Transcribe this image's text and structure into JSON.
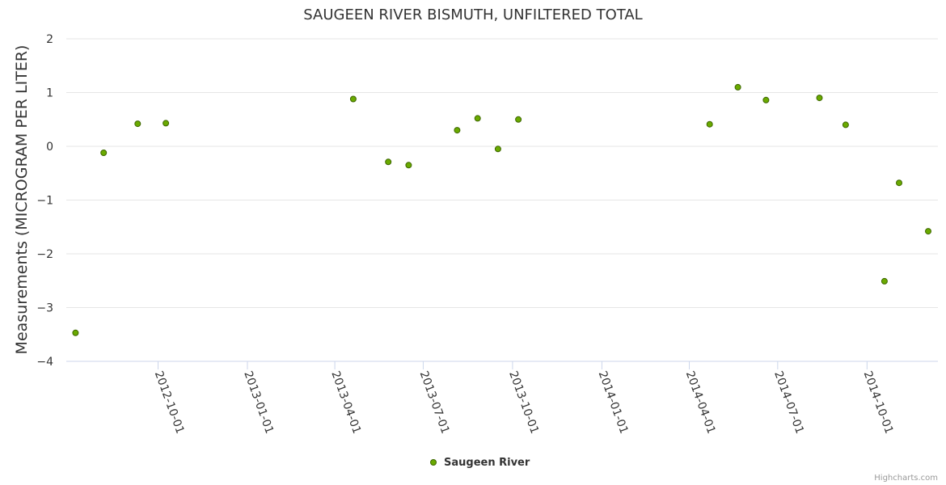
{
  "chart_data": {
    "type": "scatter",
    "title": "SAUGEEN RIVER BISMUTH, UNFILTERED TOTAL",
    "xlabel": "",
    "ylabel": "Measurements (MICROGRAM PER LITER)",
    "ylim": [
      -4,
      2
    ],
    "yticks": [
      "2",
      "1",
      "0",
      "−1",
      "−2",
      "−3",
      "−4"
    ],
    "ytick_values": [
      2,
      1,
      0,
      -1,
      -2,
      -3,
      -4
    ],
    "xlim": [
      "2012-07-06",
      "2014-12-03"
    ],
    "xticks": [
      "2012-10-01",
      "2013-01-01",
      "2013-04-01",
      "2013-07-01",
      "2013-10-01",
      "2014-01-01",
      "2014-04-01",
      "2014-07-01",
      "2014-10-01"
    ],
    "grid": true,
    "legend_position": "bottom-center",
    "series": [
      {
        "name": "Saugeen River",
        "color": "#6aaa00",
        "points": [
          {
            "x": "2012-07-08",
            "y": -3.47
          },
          {
            "x": "2012-08-06",
            "y": -0.12
          },
          {
            "x": "2012-09-10",
            "y": 0.42
          },
          {
            "x": "2012-10-09",
            "y": 0.43
          },
          {
            "x": "2013-04-20",
            "y": 0.88
          },
          {
            "x": "2013-05-26",
            "y": -0.29
          },
          {
            "x": "2013-06-16",
            "y": -0.35
          },
          {
            "x": "2013-08-05",
            "y": 0.3
          },
          {
            "x": "2013-08-26",
            "y": 0.52
          },
          {
            "x": "2013-09-16",
            "y": -0.05
          },
          {
            "x": "2013-10-07",
            "y": 0.5
          },
          {
            "x": "2014-04-22",
            "y": 0.41
          },
          {
            "x": "2014-05-21",
            "y": 1.1
          },
          {
            "x": "2014-06-19",
            "y": 0.86
          },
          {
            "x": "2014-08-13",
            "y": 0.9
          },
          {
            "x": "2014-09-09",
            "y": 0.4
          },
          {
            "x": "2014-10-19",
            "y": -2.51
          },
          {
            "x": "2014-11-03",
            "y": -0.68
          },
          {
            "x": "2014-12-03",
            "y": -1.58
          }
        ]
      }
    ],
    "credits": "Highcharts.com"
  }
}
